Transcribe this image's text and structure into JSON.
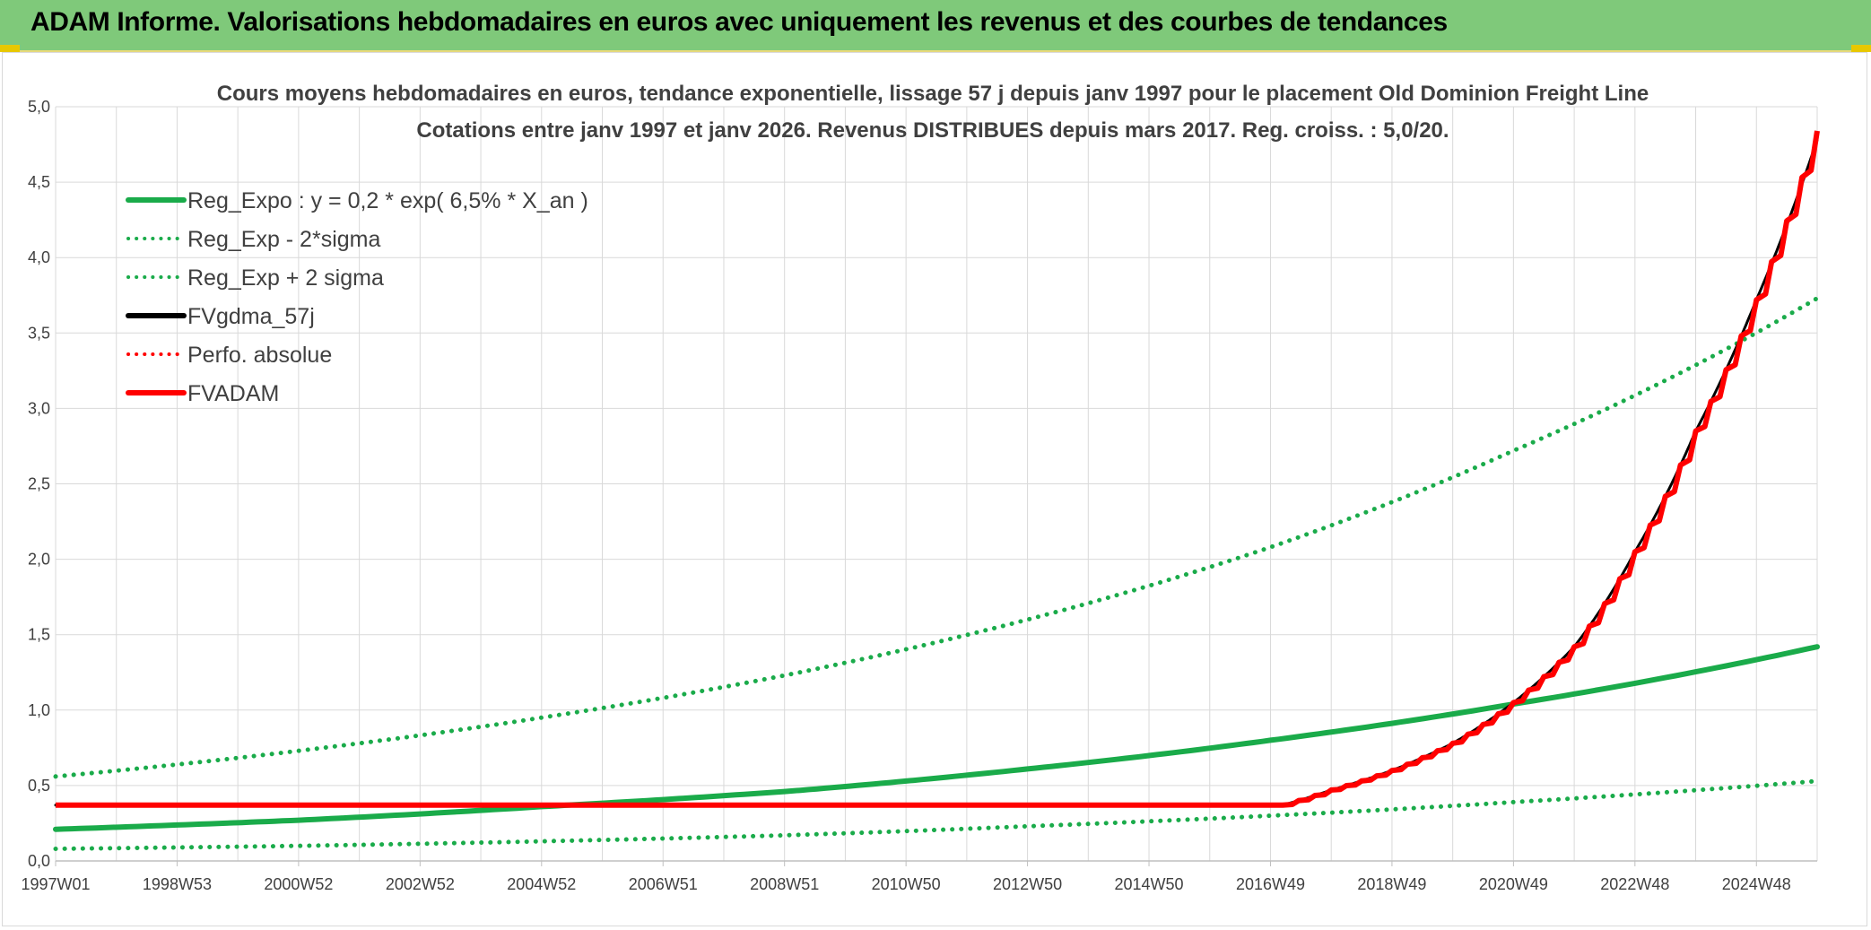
{
  "header": {
    "title": "ADAM Informe. Valorisations hebdomadaires en euros avec uniquement les revenus et des courbes de tendances"
  },
  "colors": {
    "banner": "#7fc97a",
    "reg_green": "#1aab4a",
    "red": "#ff0000",
    "black": "#000000",
    "grid": "#d9d9d9"
  },
  "chart_data": {
    "type": "line",
    "title": [
      "Cours moyens hebdomadaires en euros, tendance exponentielle, lissage 57 j depuis janv 1997 pour le placement Old Dominion Freight Line",
      "Cotations entre janv 1997 et janv 2026. Revenus DISTRIBUES depuis mars 2017. Reg. croiss. : 5,0/20."
    ],
    "x_start_year": 1997.0,
    "x_end_year": 2026.0,
    "xticks": [
      "1997W01",
      "1998W53",
      "2000W52",
      "2002W52",
      "2004W52",
      "2006W51",
      "2008W51",
      "2010W50",
      "2012W50",
      "2014W50",
      "2016W49",
      "2018W49",
      "2020W49",
      "2022W48",
      "2024W48"
    ],
    "xtick_years": [
      1997.0,
      1999.0,
      2001.0,
      2003.0,
      2005.0,
      2007.0,
      2009.0,
      2011.0,
      2013.0,
      2015.0,
      2017.0,
      2019.0,
      2021.0,
      2023.0,
      2025.0
    ],
    "ylim": [
      0,
      5
    ],
    "yticks": [
      "0,0",
      "0,5",
      "1,0",
      "1,5",
      "2,0",
      "2,5",
      "3,0",
      "3,5",
      "4,0",
      "4,5",
      "5,0"
    ],
    "legend": [
      {
        "name": "Reg_Expo : y = 0,2 * exp( 6,5% *  X_an )",
        "style": "solid",
        "color": "#1aab4a"
      },
      {
        "name": "Reg_Exp - 2*sigma",
        "style": "dotted",
        "color": "#1aab4a"
      },
      {
        "name": "Reg_Exp + 2 sigma",
        "style": "dotted",
        "color": "#1aab4a"
      },
      {
        "name": "FVgdma_57j",
        "style": "solid",
        "color": "#000000"
      },
      {
        "name": "Perfo. absolue",
        "style": "dotted",
        "color": "#ff0000"
      },
      {
        "name": "FVADAM",
        "style": "solid",
        "color": "#ff0000"
      }
    ],
    "series": [
      {
        "name": "Reg_Expo",
        "points": [
          [
            1997.0,
            0.21
          ],
          [
            2001.0,
            0.27
          ],
          [
            2005.0,
            0.36
          ],
          [
            2009.0,
            0.46
          ],
          [
            2013.0,
            0.61
          ],
          [
            2017.0,
            0.8
          ],
          [
            2021.0,
            1.04
          ],
          [
            2026.0,
            1.42
          ]
        ]
      },
      {
        "name": "Reg_Exp - 2*sigma",
        "points": [
          [
            1997.0,
            0.08
          ],
          [
            2001.0,
            0.1
          ],
          [
            2005.0,
            0.13
          ],
          [
            2009.0,
            0.17
          ],
          [
            2013.0,
            0.23
          ],
          [
            2017.0,
            0.3
          ],
          [
            2021.0,
            0.39
          ],
          [
            2026.0,
            0.53
          ]
        ]
      },
      {
        "name": "Reg_Exp + 2 sigma",
        "points": [
          [
            1997.0,
            0.56
          ],
          [
            2001.0,
            0.73
          ],
          [
            2005.0,
            0.95
          ],
          [
            2009.0,
            1.23
          ],
          [
            2013.0,
            1.6
          ],
          [
            2017.0,
            2.08
          ],
          [
            2021.0,
            2.72
          ],
          [
            2026.0,
            3.73
          ]
        ]
      },
      {
        "name": "FVgdma_57j",
        "points": [
          [
            1997.0,
            0.37
          ],
          [
            2017.2,
            0.37
          ],
          [
            2018.0,
            0.47
          ],
          [
            2019.0,
            0.6
          ],
          [
            2020.0,
            0.78
          ],
          [
            2021.0,
            1.05
          ],
          [
            2022.0,
            1.42
          ],
          [
            2023.0,
            2.05
          ],
          [
            2024.0,
            2.85
          ],
          [
            2025.0,
            3.72
          ],
          [
            2026.0,
            4.78
          ]
        ]
      },
      {
        "name": "FVADAM",
        "points": [
          [
            1997.0,
            0.37
          ],
          [
            2017.2,
            0.37
          ],
          [
            2018.0,
            0.47
          ],
          [
            2019.0,
            0.6
          ],
          [
            2020.0,
            0.78
          ],
          [
            2021.0,
            1.05
          ],
          [
            2022.0,
            1.42
          ],
          [
            2023.0,
            2.05
          ],
          [
            2024.0,
            2.85
          ],
          [
            2025.0,
            3.72
          ],
          [
            2026.0,
            4.84
          ]
        ]
      }
    ]
  }
}
